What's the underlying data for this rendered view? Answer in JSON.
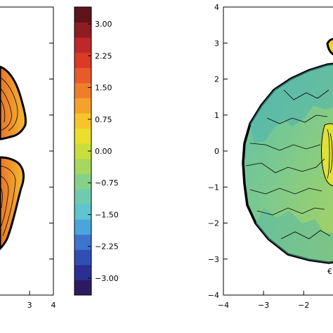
{
  "chart_data": [
    {
      "type": "contour",
      "panel": "left",
      "x_tick_labels": [
        "3",
        "4"
      ],
      "x_ticks": [
        3,
        4
      ],
      "xlim": [
        1.7,
        4.0
      ],
      "ylim": [
        -4,
        4
      ],
      "shape": "two lobes (upper and lower), high values 1.5–2.6, cut-off at left edge",
      "colorbar": {
        "position": "right of left panel",
        "range": [
          -3.4,
          3.4
        ],
        "tick_values": [
          3.0,
          2.25,
          1.5,
          0.75,
          0.0,
          -0.75,
          -1.5,
          -2.25,
          -3.0
        ],
        "tick_labels": [
          "3.00",
          "2.25",
          "1.50",
          "0.75",
          "0.00",
          "−0.75",
          "−1.50",
          "−2.25",
          "−3.00"
        ],
        "colors": [
          "#2c1a63",
          "#2a2f93",
          "#2f4fb5",
          "#3c74cf",
          "#4ba5dc",
          "#5ec4d2",
          "#6fcbb0",
          "#86d18a",
          "#a6d75f",
          "#c9de3a",
          "#eadf2c",
          "#f7c52a",
          "#f5a22a",
          "#ef7e2b",
          "#e85a2a",
          "#d93b27",
          "#c0272a",
          "#8e1d22",
          "#5e1418"
        ]
      }
    },
    {
      "type": "contour",
      "panel": "right",
      "x_tick_labels": [
        "−4",
        "−3",
        "−2"
      ],
      "x_ticks": [
        -4,
        -3,
        -2
      ],
      "y_tick_labels": [
        "4",
        "3",
        "2",
        "1",
        "0",
        "−1",
        "−2",
        "−3",
        "−4"
      ],
      "y_ticks": [
        4,
        3,
        2,
        1,
        0,
        -1,
        -2,
        -3,
        -4
      ],
      "xlim": [
        -4,
        -1.2
      ],
      "ylim": [
        -4,
        4
      ],
      "shape": "large disc, values mostly 0.0–0.75 (green/teal), higher yellow region at right edge"
    }
  ]
}
